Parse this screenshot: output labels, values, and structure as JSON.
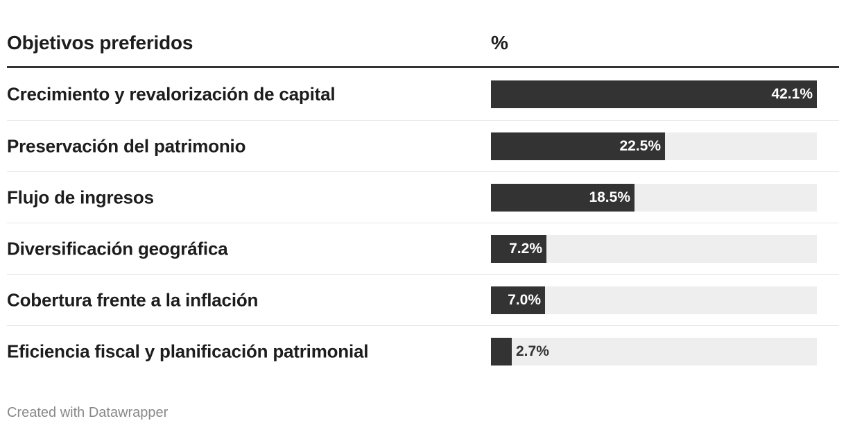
{
  "header": {
    "label_column": "Objetivos preferidos",
    "value_column": "%"
  },
  "colors": {
    "bar": "#333333",
    "track": "#eeeeee",
    "text": "#1d1d1d"
  },
  "chart_data": {
    "type": "bar",
    "orientation": "horizontal",
    "xlim": [
      0,
      42.1
    ],
    "categories": [
      "Crecimiento y revalorización de capital",
      "Preservación del patrimonio",
      "Flujo de ingresos",
      "Diversificación geográfica",
      "Cobertura frente a la inflación",
      "Eficiencia fiscal y planificación patrimonial"
    ],
    "values": [
      42.1,
      22.5,
      18.5,
      7.2,
      7.0,
      2.7
    ],
    "value_labels": [
      "42.1%",
      "22.5%",
      "18.5%",
      "7.2%",
      "7.0%",
      "2.7%"
    ]
  },
  "footer": {
    "credit": "Created with Datawrapper"
  }
}
